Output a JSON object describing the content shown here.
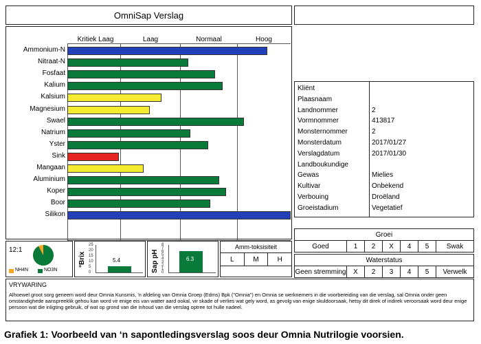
{
  "report": {
    "title": "OmniSap Verslag"
  },
  "chart": {
    "categories": [
      "Kritiek Laag",
      "Laag",
      "Normaal",
      "Hoog"
    ],
    "nutrients": [
      {
        "name": "Ammonium-N",
        "level": 0.895,
        "color": "#2240b8"
      },
      {
        "name": "Nitraat-N",
        "level": 0.54,
        "color": "#0a7a3a"
      },
      {
        "name": "Fosfaat",
        "level": 0.66,
        "color": "#0a7a3a"
      },
      {
        "name": "Kalium",
        "level": 0.695,
        "color": "#0a7a3a"
      },
      {
        "name": "Kalsium",
        "level": 0.42,
        "color": "#f5ec32"
      },
      {
        "name": "Magnesium",
        "level": 0.37,
        "color": "#f5ec32"
      },
      {
        "name": "Swael",
        "level": 0.79,
        "color": "#0a7a3a"
      },
      {
        "name": "Natrium",
        "level": 0.55,
        "color": "#0a7a3a"
      },
      {
        "name": "Yster",
        "level": 0.63,
        "color": "#0a7a3a"
      },
      {
        "name": "Sink",
        "level": 0.23,
        "color": "#e52521"
      },
      {
        "name": "Mangaan",
        "level": 0.34,
        "color": "#f5ec32"
      },
      {
        "name": "Aluminium",
        "level": 0.68,
        "color": "#0a7a3a"
      },
      {
        "name": "Koper",
        "level": 0.71,
        "color": "#0a7a3a"
      },
      {
        "name": "Boor",
        "level": 0.64,
        "color": "#0a7a3a"
      },
      {
        "name": "Silikon",
        "level": 1.0,
        "color": "#2240b8"
      }
    ]
  },
  "info": [
    {
      "key": "Kliënt",
      "value": ""
    },
    {
      "key": "Plaasnaam",
      "value": ""
    },
    {
      "key": "Landnommer",
      "value": "2"
    },
    {
      "key": "Vormnommer",
      "value": "413817"
    },
    {
      "key": "Monsternommer",
      "value": "2"
    },
    {
      "key": "Monsterdatum",
      "value": "2017/01/27"
    },
    {
      "key": "Verslagdatum",
      "value": "2017/01/30"
    },
    {
      "key": "Landboukundige",
      "value": ""
    },
    {
      "key": "Gewas",
      "value": "Mielies"
    },
    {
      "key": "Kultivar",
      "value": "Onbekend"
    },
    {
      "key": "Verbouing",
      "value": "Droëland"
    },
    {
      "key": "Groeistadium",
      "value": "Vegetatief"
    }
  ],
  "groei": {
    "title": "Groei",
    "cells": [
      "Goed",
      "1",
      "2",
      "X",
      "4",
      "5",
      "Swak"
    ]
  },
  "waterstatus": {
    "title": "Waterstatus",
    "cells": [
      "Geen stremming",
      "X",
      "2",
      "3",
      "4",
      "5",
      "Verwelk"
    ]
  },
  "ratio": {
    "label": "12:1",
    "nh4n_fraction": 0.077,
    "legend_nh4n": "NH4N",
    "legend_no3n": "NO3N",
    "colors": {
      "nh4n": "#f5a623",
      "no3n": "#0a7a3a"
    }
  },
  "brix": {
    "label": "°Brix",
    "value": "5.4",
    "numeric": 5.4,
    "axis_max": 25,
    "ticks": [
      "25",
      "20",
      "15",
      "10",
      "5",
      "0"
    ]
  },
  "ph": {
    "label": "Sap pH",
    "value": "6.3",
    "numeric": 6.3,
    "axis_max": 8,
    "ticks": [
      "8",
      "7",
      "6",
      "5",
      "4",
      "3",
      "2",
      "1",
      "0"
    ]
  },
  "amm": {
    "title": "Amm-toksisiteit",
    "cols": [
      "L",
      "M",
      "H"
    ]
  },
  "vrywaring": {
    "title": "VRYWARING",
    "text": "Alhoewel groot sorg geneem word deur Omnia Kunsmis, 'n afdeling van Omnia Groep (Edms) Bpk (\"Omnia\") en Omnia se werknemers in die voorbereiding van die verslag, sal Omnia onder geen omstandighede aanspreeklik gehou kan word vir enige eis van watter aard ookal, vir skade of verlies wat gely word, as gevolg van enige skuldoorsaak, hetsy dit direk of indirek veroorsaak word deur enige persoon wat die inligting gebruik, of wat op grond van die inhoud van die verslag optree tot hulle nadeel."
  },
  "caption": "Grafiek 1: Voorbeeld van ‘n sapontledingsverslag soos deur Omnia Nutrilogie voorsien."
}
